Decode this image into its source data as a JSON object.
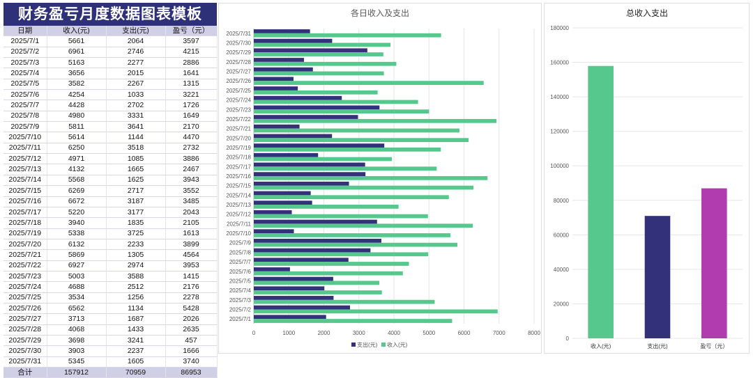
{
  "page_title": "财务盈亏月度数据图表模板",
  "table": {
    "headers": [
      "日期",
      "收入(元)",
      "支出(元)",
      "盈亏（元）"
    ],
    "rows": [
      [
        "2025/7/1",
        "5661",
        "2064",
        "3597"
      ],
      [
        "2025/7/2",
        "6961",
        "2746",
        "4215"
      ],
      [
        "2025/7/3",
        "5163",
        "2277",
        "2886"
      ],
      [
        "2025/7/4",
        "3656",
        "2015",
        "1641"
      ],
      [
        "2025/7/5",
        "3582",
        "2267",
        "1315"
      ],
      [
        "2025/7/6",
        "4254",
        "1033",
        "3221"
      ],
      [
        "2025/7/7",
        "4428",
        "2702",
        "1726"
      ],
      [
        "2025/7/8",
        "4980",
        "3331",
        "1649"
      ],
      [
        "2025/7/9",
        "5811",
        "3641",
        "2170"
      ],
      [
        "2025/7/10",
        "5614",
        "1144",
        "4470"
      ],
      [
        "2025/7/11",
        "6250",
        "3518",
        "2732"
      ],
      [
        "2025/7/12",
        "4971",
        "1085",
        "3886"
      ],
      [
        "2025/7/13",
        "4132",
        "1665",
        "2467"
      ],
      [
        "2025/7/14",
        "5568",
        "1625",
        "3943"
      ],
      [
        "2025/7/15",
        "6269",
        "2717",
        "3552"
      ],
      [
        "2025/7/16",
        "6672",
        "3187",
        "3485"
      ],
      [
        "2025/7/17",
        "5220",
        "3177",
        "2043"
      ],
      [
        "2025/7/18",
        "3940",
        "1835",
        "2105"
      ],
      [
        "2025/7/19",
        "5338",
        "3725",
        "1613"
      ],
      [
        "2025/7/20",
        "6132",
        "2233",
        "3899"
      ],
      [
        "2025/7/21",
        "5869",
        "1305",
        "4564"
      ],
      [
        "2025/7/22",
        "6927",
        "2974",
        "3953"
      ],
      [
        "2025/7/23",
        "5003",
        "3588",
        "1415"
      ],
      [
        "2025/7/24",
        "4688",
        "2512",
        "2176"
      ],
      [
        "2025/7/25",
        "3534",
        "1256",
        "2278"
      ],
      [
        "2025/7/26",
        "6562",
        "1134",
        "5428"
      ],
      [
        "2025/7/27",
        "3713",
        "1687",
        "2026"
      ],
      [
        "2025/7/28",
        "4068",
        "1433",
        "2635"
      ],
      [
        "2025/7/29",
        "3698",
        "3241",
        "457"
      ],
      [
        "2025/7/30",
        "3903",
        "2237",
        "1666"
      ],
      [
        "2025/7/31",
        "5345",
        "1605",
        "3740"
      ]
    ],
    "total_row": [
      "合计",
      "157912",
      "70959",
      "86953"
    ]
  },
  "colors": {
    "title_bg": "#2f3178",
    "header_bg": "#cfcfe6",
    "income": "#57c88d",
    "expense": "#32317a",
    "profit": "#b03cb0",
    "grid": "#e6e6e6",
    "axis_text": "#555555"
  },
  "chart_data": [
    {
      "type": "bar",
      "orientation": "horizontal",
      "title": "各日收入及支出",
      "categories": [
        "2025/7/1",
        "2025/7/2",
        "2025/7/3",
        "2025/7/4",
        "2025/7/5",
        "2025/7/6",
        "2025/7/7",
        "2025/7/8",
        "2025/7/9",
        "2025/7/10",
        "2025/7/11",
        "2025/7/12",
        "2025/7/13",
        "2025/7/14",
        "2025/7/15",
        "2025/7/16",
        "2025/7/17",
        "2025/7/18",
        "2025/7/19",
        "2025/7/20",
        "2025/7/21",
        "2025/7/22",
        "2025/7/23",
        "2025/7/24",
        "2025/7/25",
        "2025/7/26",
        "2025/7/27",
        "2025/7/28",
        "2025/7/29",
        "2025/7/30",
        "2025/7/31"
      ],
      "series": [
        {
          "name": "支出(元)",
          "values": [
            2064,
            2746,
            2277,
            2015,
            2267,
            1033,
            2702,
            3331,
            3641,
            1144,
            3518,
            1085,
            1665,
            1625,
            2717,
            3187,
            3177,
            1835,
            3725,
            2233,
            1305,
            2974,
            3588,
            2512,
            1256,
            1134,
            1687,
            1433,
            3241,
            2237,
            1605
          ]
        },
        {
          "name": "收入(元)",
          "values": [
            5661,
            6961,
            5163,
            3656,
            3582,
            4254,
            4428,
            4980,
            5811,
            5614,
            6250,
            4971,
            4132,
            5568,
            6269,
            6672,
            5220,
            3940,
            5338,
            6132,
            5869,
            6927,
            5003,
            4688,
            3534,
            6562,
            3713,
            4068,
            3698,
            3903,
            5345
          ]
        }
      ],
      "xlim": [
        0,
        8000
      ],
      "xticks": [
        "0",
        "1000",
        "2000",
        "3000",
        "4000",
        "5000",
        "6000",
        "7000",
        "8000"
      ],
      "legend_position": "bottom",
      "grid": true
    },
    {
      "type": "bar",
      "title": "总收入支出",
      "categories": [
        "收入(元)",
        "支出(元)",
        "盈亏（元）"
      ],
      "values": [
        157912,
        70959,
        86953
      ],
      "ylim": [
        0,
        180000
      ],
      "yticks": [
        "0",
        "20000",
        "40000",
        "60000",
        "80000",
        "100000",
        "120000",
        "140000",
        "160000",
        "180000"
      ],
      "legend_position": "none",
      "grid": true
    }
  ]
}
